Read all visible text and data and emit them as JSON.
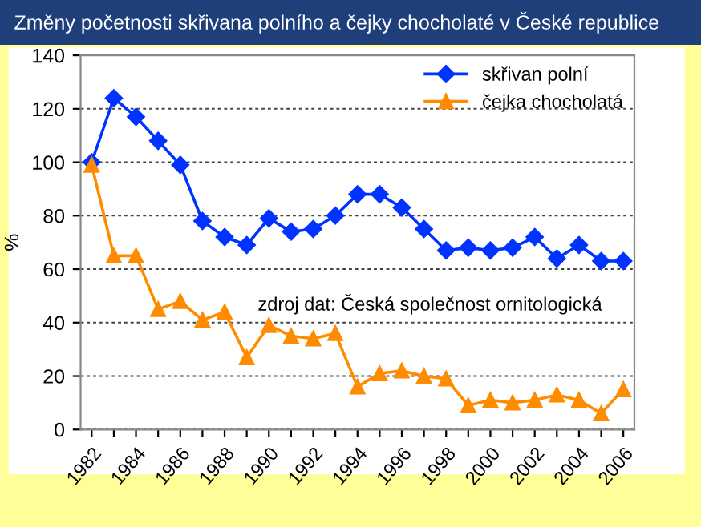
{
  "chart_data": {
    "type": "line",
    "title": "Změny početnosti skřivana polního a čejky chocholaté v České republice",
    "ylabel": "%",
    "categories": [
      "1982",
      null,
      "1984",
      null,
      "1986",
      null,
      "1988",
      null,
      "1990",
      null,
      "1992",
      null,
      "1994",
      null,
      "1996",
      null,
      "1998",
      null,
      "2000",
      null,
      "2002",
      null,
      "2004",
      null,
      "2006"
    ],
    "series": [
      {
        "name": "skřivan polní",
        "color": "#0033ff",
        "marker": "diamond",
        "values": [
          100,
          124,
          117,
          108,
          99,
          78,
          72,
          69,
          79,
          74,
          75,
          80,
          88,
          88,
          83,
          75,
          67,
          68,
          67,
          68,
          72,
          64,
          69,
          63,
          63
        ]
      },
      {
        "name": "čejka chocholatá",
        "color": "#ff8c00",
        "marker": "triangle",
        "values": [
          99,
          65,
          65,
          45,
          48,
          41,
          44,
          27,
          39,
          35,
          34,
          36,
          16,
          21,
          22,
          20,
          19,
          9,
          11,
          10,
          11,
          13,
          11,
          6,
          15
        ]
      }
    ],
    "ylim": [
      0,
      140
    ],
    "yticks": [
      0,
      20,
      40,
      60,
      80,
      100,
      120,
      140
    ],
    "grid": "y",
    "legend": "top right",
    "annotations": [
      "zdroj dat: Česká společnost ornitologická"
    ]
  }
}
